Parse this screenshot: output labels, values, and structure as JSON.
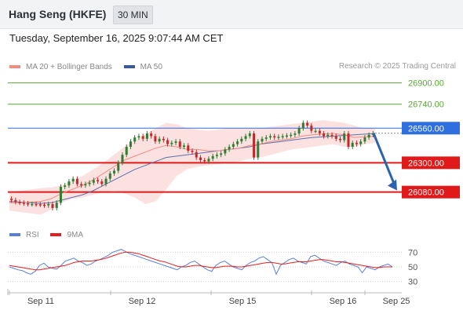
{
  "header": {
    "symbol": "Hang Seng (HKFE)",
    "interval": "30 MIN"
  },
  "datetime": "Tuesday, September 16, 2025 9:07:44 AM CET",
  "legend": {
    "items": [
      {
        "label": "MA 20 + Bollinger Bands",
        "color": "#f28b82"
      },
      {
        "label": "MA 50",
        "color": "#3a5aa0"
      }
    ],
    "research": "Research © 2025 Trading Central"
  },
  "rsi_legend": {
    "items": [
      {
        "label": "RSI",
        "color": "#5b7fd6"
      },
      {
        "label": "9MA",
        "color": "#e02020"
      }
    ]
  },
  "chart_data": [
    {
      "type": "candlestick",
      "series_color_up": "#2e7d32",
      "series_color_down": "#c62828",
      "ylim": [
        25860,
        26980
      ],
      "x_labels": [
        "Sep 11",
        "Sep 12",
        "Sep 15",
        "Sep 16",
        "Sep 25"
      ],
      "levels": [
        {
          "value": 26900,
          "label": "26900.00",
          "kind": "resistance",
          "color": "#5aa832"
        },
        {
          "value": 26740,
          "label": "26740.00",
          "kind": "resistance",
          "color": "#5aa832"
        },
        {
          "value": 26560,
          "label": "26560.00",
          "kind": "pivot",
          "color": "#2f6fe0"
        },
        {
          "value": 26300,
          "label": "26300.00",
          "kind": "support",
          "color": "#e01a1a"
        },
        {
          "value": 26080,
          "label": "26080.00",
          "kind": "support",
          "color": "#e01a1a"
        }
      ],
      "last_price": {
        "value": 26522,
        "label": "26522.00"
      },
      "forecast": {
        "from": 26522,
        "to": 26080
      },
      "close": [
        26020,
        26005,
        26000,
        25995,
        25990,
        25990,
        25988,
        25985,
        25980,
        25990,
        25960,
        26000,
        26120,
        26130,
        26160,
        26180,
        26140,
        26130,
        26140,
        26150,
        26170,
        26160,
        26140,
        26180,
        26220,
        26240,
        26300,
        26360,
        26420,
        26460,
        26490,
        26500,
        26480,
        26520,
        26500,
        26460,
        26480,
        26470,
        26440,
        26450,
        26460,
        26420,
        26430,
        26390,
        26380,
        26340,
        26320,
        26310,
        26330,
        26350,
        26360,
        26370,
        26400,
        26420,
        26440,
        26460,
        26480,
        26500,
        26520,
        26340,
        26460,
        26480,
        26490,
        26500,
        26490,
        26495,
        26500,
        26505,
        26510,
        26520,
        26560,
        26600,
        26580,
        26540,
        26540,
        26520,
        26500,
        26510,
        26500,
        26480,
        26470,
        26520,
        26420,
        26450,
        26440,
        26460,
        26490,
        26510,
        26520
      ],
      "bb_upper": [
        26080,
        26090,
        26100,
        26110,
        26115,
        26130,
        26160,
        26200,
        26250,
        26300,
        26360,
        26420,
        26470,
        26510,
        26560,
        26600,
        26590,
        26560,
        26550,
        26540,
        26550,
        26560,
        26560,
        26560,
        26560,
        26570,
        26580,
        26590,
        26600,
        26610,
        26620,
        26610,
        26600,
        26580,
        26560,
        26560
      ],
      "bb_lower": [
        25940,
        25930,
        25920,
        25910,
        25950,
        26000,
        26030,
        26040,
        26060,
        26080,
        26090,
        26070,
        26040,
        25990,
        26010,
        26100,
        26200,
        26250,
        26270,
        26280,
        26290,
        26300,
        26310,
        26330,
        26340,
        26360,
        26380,
        26400,
        26410,
        26420,
        26430,
        26440,
        26420,
        26420,
        26440,
        26450
      ],
      "ma20": [
        26000,
        26000,
        26005,
        26010,
        26030,
        26070,
        26100,
        26130,
        26170,
        26220,
        26270,
        26320,
        26350,
        26380,
        26410,
        26430,
        26420,
        26400,
        26400,
        26390,
        26390,
        26400,
        26410,
        26430,
        26440,
        26460,
        26470,
        26480,
        26500,
        26510,
        26515,
        26520,
        26510,
        26490,
        26495,
        26500
      ],
      "ma50": [
        26010,
        26005,
        26000,
        25995,
        26000,
        26020,
        26040,
        26060,
        26090,
        26130,
        26170,
        26210,
        26250,
        26280,
        26310,
        26340,
        26350,
        26360,
        26370,
        26380,
        26390,
        26400,
        26410,
        26420,
        26440,
        26450,
        26460,
        26470,
        26480,
        26490,
        26495,
        26500,
        26505,
        26510,
        26515,
        26520
      ]
    },
    {
      "type": "line",
      "ylim": [
        20,
        80
      ],
      "y_ticks": [
        70,
        50,
        30
      ],
      "series": [
        {
          "name": "RSI",
          "color": "#5b7fd6",
          "values": [
            50,
            48,
            46,
            45,
            42,
            40,
            44,
            52,
            55,
            50,
            48,
            47,
            52,
            58,
            60,
            62,
            58,
            56,
            52,
            54,
            58,
            60,
            63,
            66,
            70,
            72,
            74,
            71,
            68,
            66,
            64,
            62,
            60,
            58,
            56,
            54,
            52,
            50,
            48,
            46,
            50,
            52,
            56,
            58,
            54,
            50,
            46,
            44,
            52,
            56,
            58,
            54,
            50,
            48,
            46,
            52,
            56,
            58,
            62,
            64,
            60,
            56,
            40,
            52,
            56,
            60,
            62,
            58,
            56,
            54,
            64,
            66,
            62,
            58,
            56,
            54,
            52,
            56,
            58,
            54,
            52,
            50,
            42,
            50,
            48,
            46,
            50,
            52,
            54,
            50
          ]
        },
        {
          "name": "9MA",
          "color": "#e02020",
          "values": [
            52,
            51,
            50,
            49,
            48,
            47,
            46,
            46,
            47,
            48,
            49,
            50,
            51,
            52,
            54,
            56,
            57,
            58,
            58,
            58,
            59,
            60,
            61,
            63,
            65,
            67,
            69,
            70,
            70,
            69,
            68,
            66,
            64,
            62,
            60,
            58,
            57,
            55,
            53,
            51,
            50,
            50,
            51,
            52,
            52,
            51,
            50,
            49,
            49,
            50,
            51,
            51,
            51,
            50,
            50,
            51,
            52,
            53,
            54,
            55,
            56,
            56,
            55,
            54,
            54,
            55,
            56,
            57,
            57,
            57,
            58,
            59,
            60,
            60,
            59,
            58,
            57,
            57,
            56,
            55,
            54,
            53,
            52,
            51,
            50,
            49,
            49,
            50,
            50,
            50
          ]
        }
      ]
    }
  ]
}
